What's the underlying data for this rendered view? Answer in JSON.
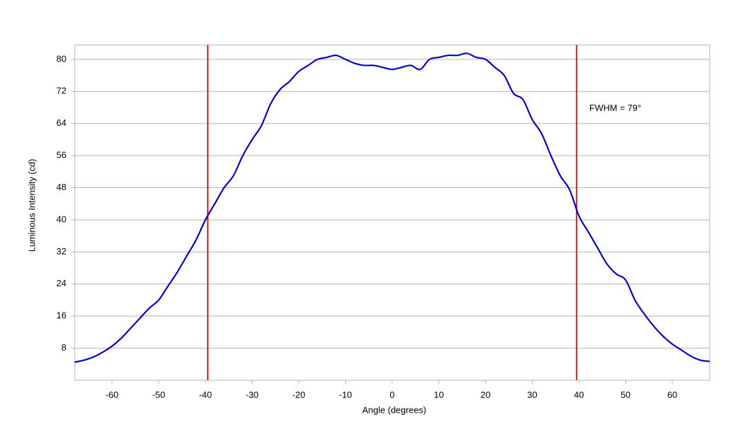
{
  "chart_data": {
    "type": "line",
    "xlabel": "Angle (degrees)",
    "ylabel": "Luminous Intensity (cd)",
    "annotation": "FWHM = 79°",
    "x": [
      -68,
      -66,
      -64,
      -62,
      -60,
      -58,
      -56,
      -54,
      -52,
      -50,
      -48,
      -46,
      -44,
      -42,
      -40,
      -38,
      -36,
      -34,
      -32,
      -30,
      -28,
      -26,
      -24,
      -22,
      -20,
      -18,
      -16,
      -14,
      -12,
      -10,
      -8,
      -6,
      -4,
      -2,
      0,
      2,
      4,
      6,
      8,
      10,
      12,
      14,
      16,
      18,
      20,
      22,
      24,
      26,
      28,
      30,
      32,
      34,
      36,
      38,
      40,
      42,
      44,
      46,
      48,
      50,
      52,
      54,
      56,
      58,
      60,
      62,
      64,
      66,
      68
    ],
    "series": [
      {
        "color": "#0000cc",
        "values": [
          4.5,
          5,
          5.8,
          7,
          8.5,
          10.5,
          13,
          15.5,
          18,
          20,
          23.5,
          27,
          31,
          35,
          40,
          44,
          48,
          51,
          56,
          60,
          63.5,
          69,
          72.5,
          74.5,
          77,
          78.5,
          80,
          80.5,
          81,
          80,
          79,
          78.5,
          78.5,
          78,
          77.5,
          78,
          78.5,
          77.5,
          80,
          80.5,
          81,
          81,
          81.5,
          80.5,
          80,
          78,
          76,
          71.5,
          70,
          65,
          61.5,
          56,
          51,
          47.5,
          41,
          37,
          33,
          29,
          26.5,
          25,
          20,
          16.5,
          13.5,
          11,
          9,
          7.5,
          6,
          5,
          4.7
        ]
      }
    ],
    "vlines": [
      -39.5,
      39.5
    ],
    "vline_color": "#cc0000",
    "xlim": [
      -68,
      68
    ],
    "ylim": [
      0,
      83.6
    ],
    "xticks": [
      -60,
      -50,
      -40,
      -30,
      -20,
      -10,
      0,
      10,
      20,
      30,
      40,
      50,
      60
    ],
    "yticks": [
      8,
      16,
      24,
      32,
      40,
      48,
      56,
      64,
      72,
      80
    ],
    "grid": true
  }
}
